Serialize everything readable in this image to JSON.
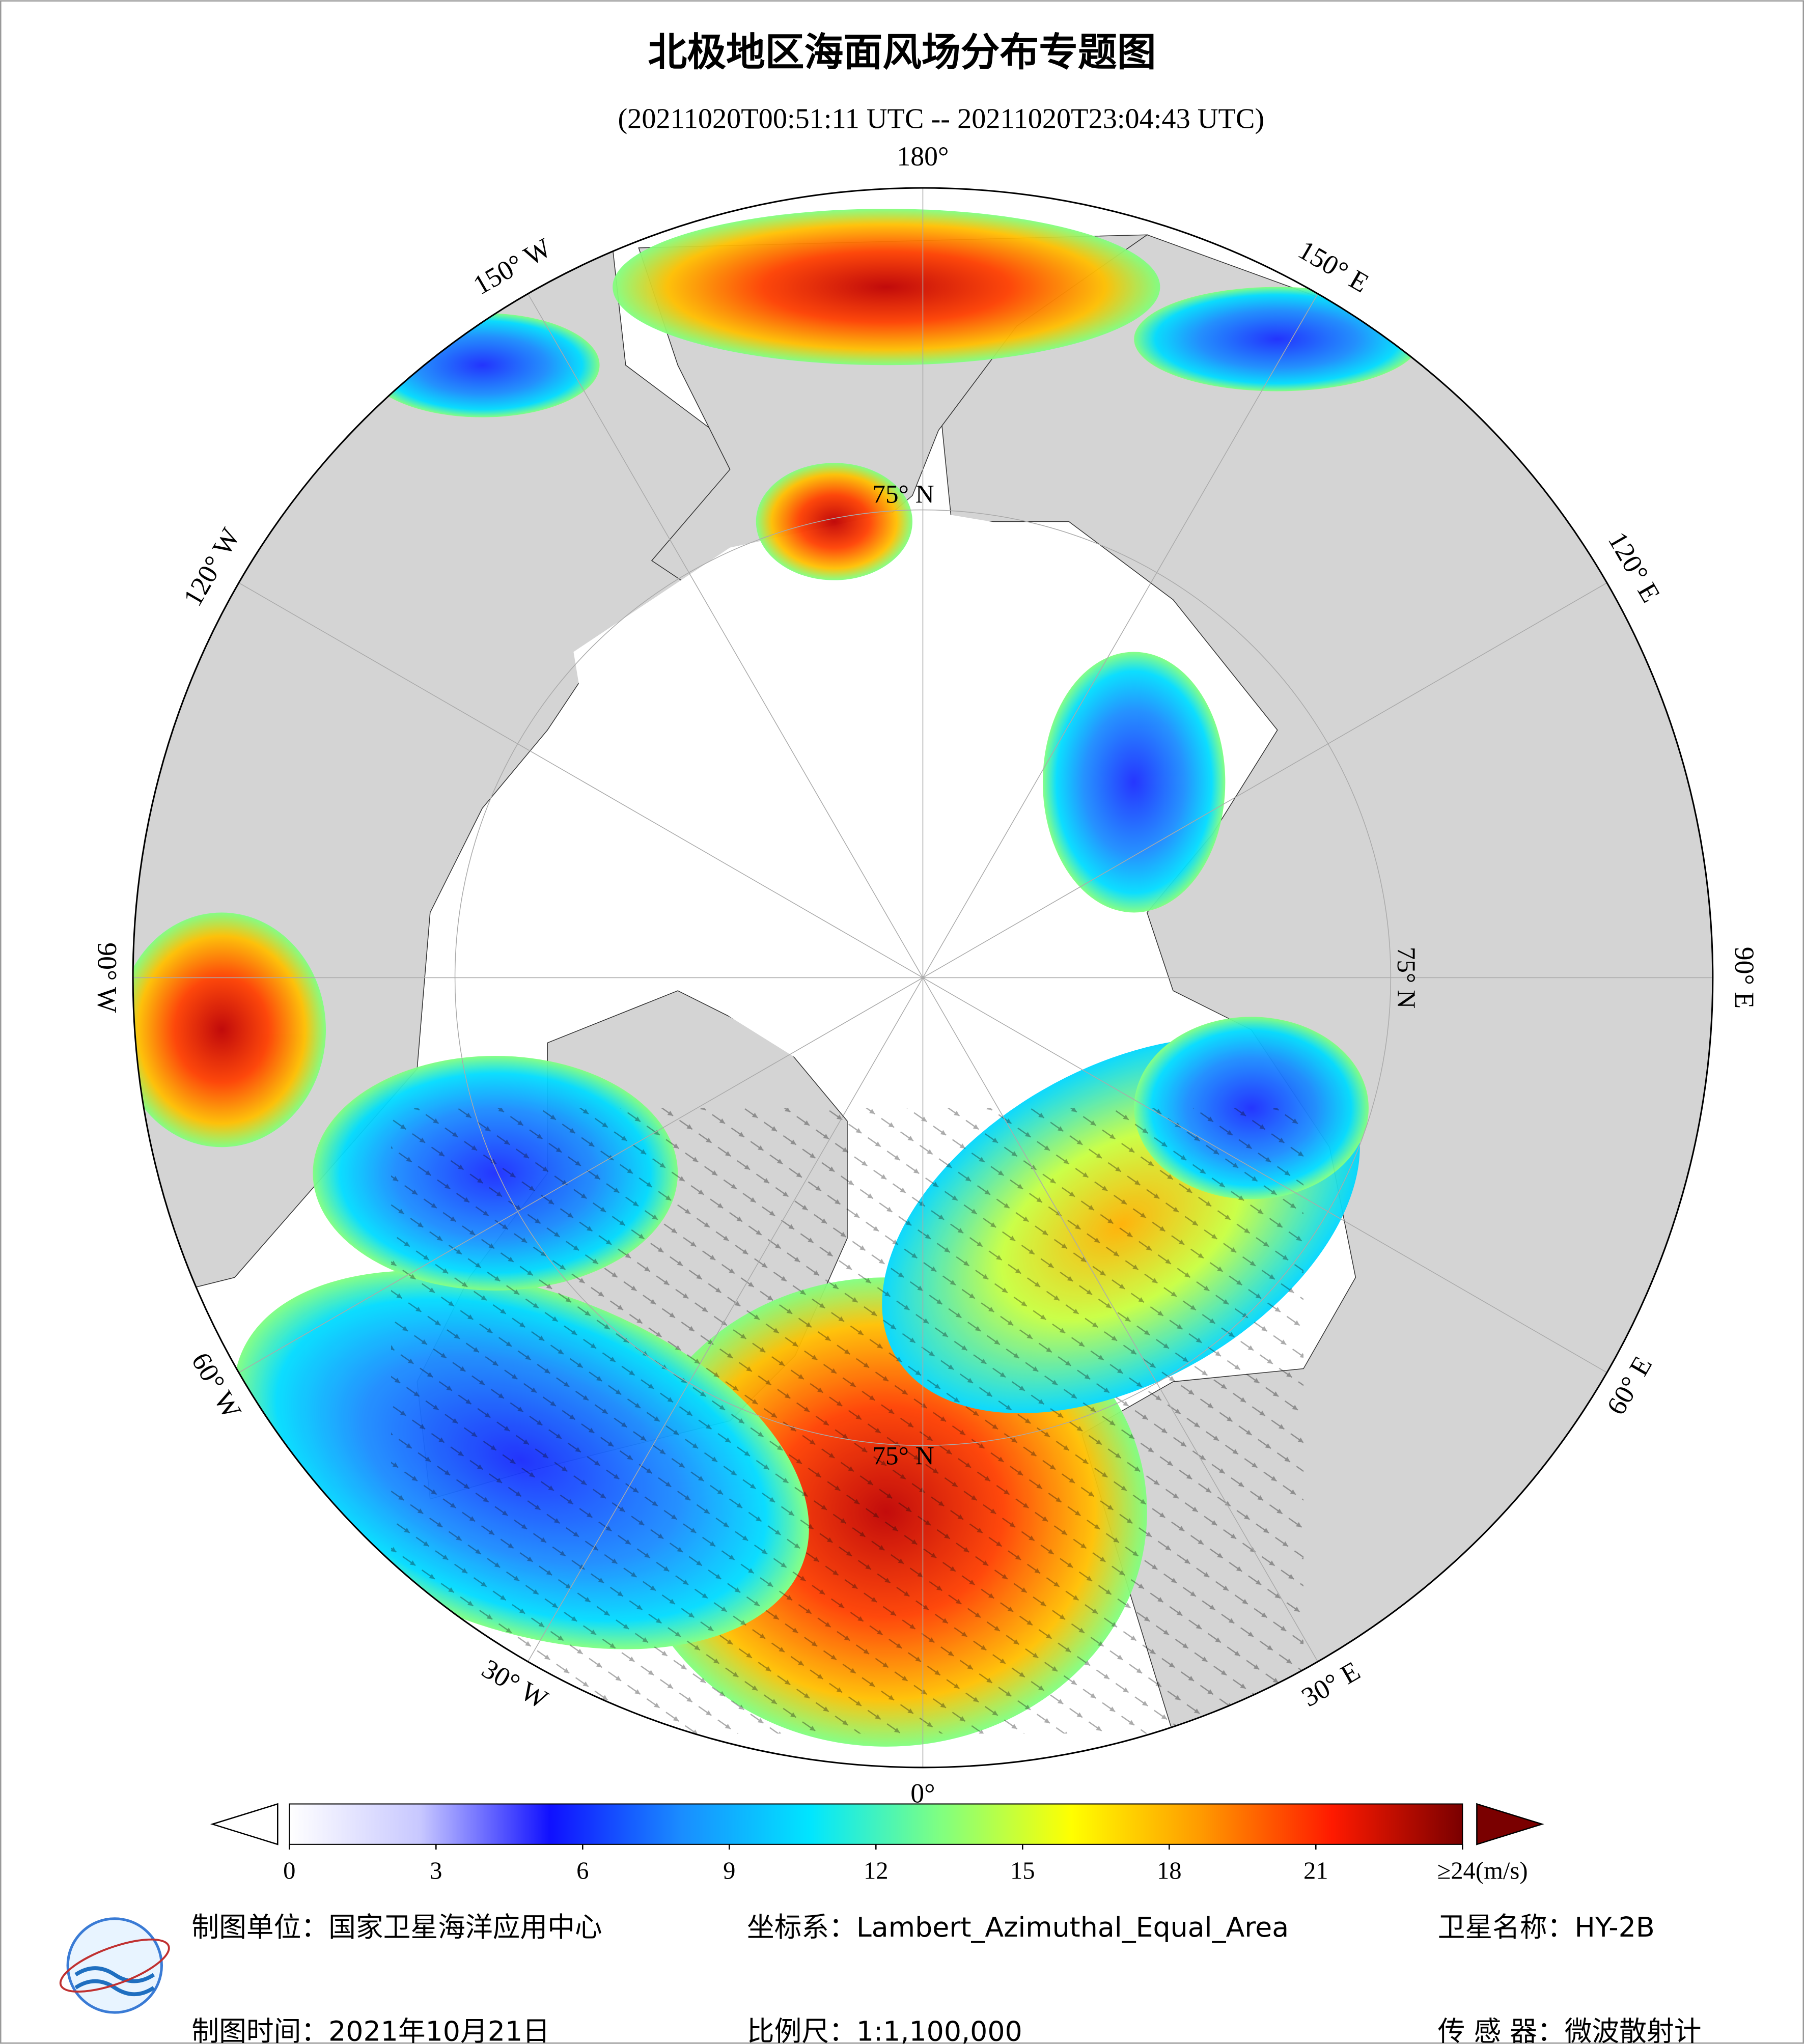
{
  "title": "北极地区海面风场分布专题图",
  "subtitle": "(20211020T00:51:11 UTC -- 20211020T23:04:43 UTC)",
  "map": {
    "longitudes": [
      {
        "value": 180,
        "label": "180°"
      },
      {
        "value": 150,
        "label": "150° E"
      },
      {
        "value": 120,
        "label": "120° E"
      },
      {
        "value": 90,
        "label": "90° E"
      },
      {
        "value": 60,
        "label": "60° E"
      },
      {
        "value": 30,
        "label": "30° E"
      },
      {
        "value": 0,
        "label": "0°"
      },
      {
        "value": -30,
        "label": "30° W"
      },
      {
        "value": -60,
        "label": "60° W"
      },
      {
        "value": -90,
        "label": "90° W"
      },
      {
        "value": -120,
        "label": "120° W"
      },
      {
        "value": -150,
        "label": "150° W"
      }
    ],
    "latitude": {
      "value": 75,
      "label": "75° N"
    }
  },
  "colorbar": {
    "range": [
      0,
      24
    ],
    "ticks": [
      0,
      3,
      6,
      9,
      12,
      15,
      18,
      21,
      {
        "value": 24,
        "label": "≥24"
      }
    ],
    "unit": "(m/s)",
    "colors": [
      "#ffffff",
      "#c8c8ff",
      "#1010ff",
      "#1a8cff",
      "#00e6ff",
      "#80ff80",
      "#ffff00",
      "#ff9900",
      "#ff1a00",
      "#7a0000"
    ]
  },
  "footer": {
    "agency": "制图单位：国家卫星海洋应用中心",
    "projection": "坐标系：Lambert_Azimuthal_Equal_Area",
    "satellite": "卫星名称：HY-2B",
    "date": "制图时间：2021年10月21日",
    "scale": "比例尺：1:1,100,000",
    "sensor": "传 感 器：微波散射计"
  }
}
